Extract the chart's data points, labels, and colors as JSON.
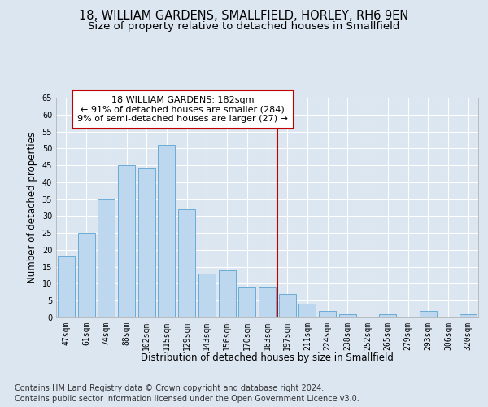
{
  "title1": "18, WILLIAM GARDENS, SMALLFIELD, HORLEY, RH6 9EN",
  "title2": "Size of property relative to detached houses in Smallfield",
  "xlabel": "Distribution of detached houses by size in Smallfield",
  "ylabel": "Number of detached properties",
  "categories": [
    "47sqm",
    "61sqm",
    "74sqm",
    "88sqm",
    "102sqm",
    "115sqm",
    "129sqm",
    "143sqm",
    "156sqm",
    "170sqm",
    "183sqm",
    "197sqm",
    "211sqm",
    "224sqm",
    "238sqm",
    "252sqm",
    "265sqm",
    "279sqm",
    "293sqm",
    "306sqm",
    "320sqm"
  ],
  "values": [
    18,
    25,
    35,
    45,
    44,
    51,
    32,
    13,
    14,
    9,
    9,
    7,
    4,
    2,
    1,
    0,
    1,
    0,
    2,
    0,
    1
  ],
  "bar_color": "#bdd7ee",
  "bar_edge_color": "#5ba3d0",
  "background_color": "#dce6f1",
  "plot_bg_color": "#dce6f1",
  "grid_color": "#ffffff",
  "vline_x": 10.5,
  "vline_color": "#c00000",
  "annotation_title": "18 WILLIAM GARDENS: 182sqm",
  "annotation_line1": "← 91% of detached houses are smaller (284)",
  "annotation_line2": "9% of semi-detached houses are larger (27) →",
  "annotation_box_color": "#ffffff",
  "annotation_box_edge": "#c00000",
  "ylim": [
    0,
    65
  ],
  "yticks": [
    0,
    5,
    10,
    15,
    20,
    25,
    30,
    35,
    40,
    45,
    50,
    55,
    60,
    65
  ],
  "footer1": "Contains HM Land Registry data © Crown copyright and database right 2024.",
  "footer2": "Contains public sector information licensed under the Open Government Licence v3.0.",
  "title_fontsize": 10.5,
  "subtitle_fontsize": 9.5,
  "axis_label_fontsize": 8.5,
  "tick_fontsize": 7,
  "footer_fontsize": 7,
  "annotation_fontsize": 8
}
